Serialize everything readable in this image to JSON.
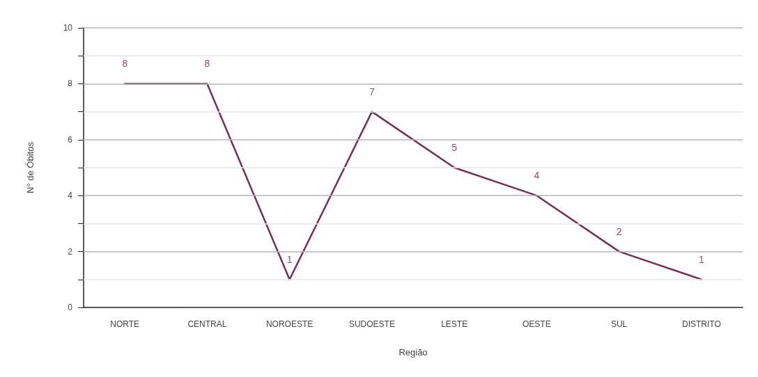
{
  "chart_data": {
    "type": "line",
    "xlabel": "Região",
    "ylabel": "N° de Óbitos",
    "categories": [
      "NORTE",
      "CENTRAL",
      "NOROESTE",
      "SUDOESTE",
      "LESTE",
      "OESTE",
      "SUL",
      "DISTRITO"
    ],
    "values": [
      8,
      8,
      1,
      7,
      5,
      4,
      2,
      1
    ],
    "color": "#7a2e52",
    "ylim": [
      0,
      10
    ],
    "yticks": [
      0,
      {
        "value": 1,
        "label": null
      },
      2,
      {
        "value": 3,
        "label": null
      },
      4,
      {
        "value": 5,
        "label": null
      },
      6,
      {
        "value": 7,
        "label": null
      },
      8,
      {
        "value": 9,
        "label": null
      },
      10
    ],
    "grid": true,
    "data_labels": true,
    "marker": "none",
    "line_style": "solid"
  }
}
